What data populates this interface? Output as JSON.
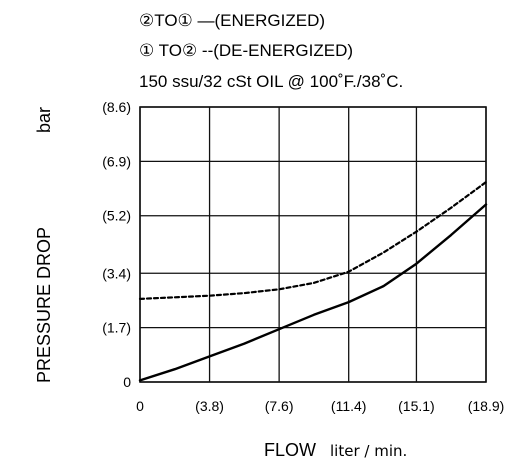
{
  "chart_data": {
    "type": "line",
    "legend": [
      "②TO① —(ENERGIZED)",
      "① TO② --(DE-ENERGIZED)",
      "150 ssu/32 cSt OIL @ 100˚F./38˚C."
    ],
    "xlabel": "FLOW",
    "xunit": "liter / min.",
    "ylabel": "PRESSURE DROP",
    "yunit": "bar",
    "xlim": [
      0,
      18.9
    ],
    "ylim": [
      0,
      8.6
    ],
    "x_ticks": [
      {
        "value": 0,
        "label": "0"
      },
      {
        "value": 3.8,
        "label": "(3.8)"
      },
      {
        "value": 7.6,
        "label": "(7.6)"
      },
      {
        "value": 11.4,
        "label": "(11.4)"
      },
      {
        "value": 15.1,
        "label": "(15.1)"
      },
      {
        "value": 18.9,
        "label": "(18.9)"
      }
    ],
    "y_ticks": [
      {
        "value": 0,
        "label": "0"
      },
      {
        "value": 1.7,
        "label": "(1.7)"
      },
      {
        "value": 3.4,
        "label": "(3.4)"
      },
      {
        "value": 5.2,
        "label": "(5.2)"
      },
      {
        "value": 6.9,
        "label": "(6.9)"
      },
      {
        "value": 8.6,
        "label": "(8.6)"
      }
    ],
    "grid": true,
    "series": [
      {
        "name": "",
        "style": "solid",
        "x": [
          0,
          1.9,
          3.8,
          5.7,
          7.6,
          9.5,
          11.4,
          13.3,
          15.1,
          17.0,
          18.9
        ],
        "y": [
          0.05,
          0.4,
          0.8,
          1.2,
          1.65,
          2.1,
          2.5,
          3.0,
          3.7,
          4.6,
          5.55
        ]
      },
      {
        "name": "",
        "style": "dashed",
        "x": [
          0,
          1.9,
          3.8,
          5.7,
          7.6,
          9.5,
          11.4,
          13.3,
          15.1,
          17.0,
          18.9
        ],
        "y": [
          2.6,
          2.65,
          2.7,
          2.78,
          2.9,
          3.1,
          3.45,
          4.05,
          4.7,
          5.45,
          6.25
        ]
      }
    ]
  }
}
